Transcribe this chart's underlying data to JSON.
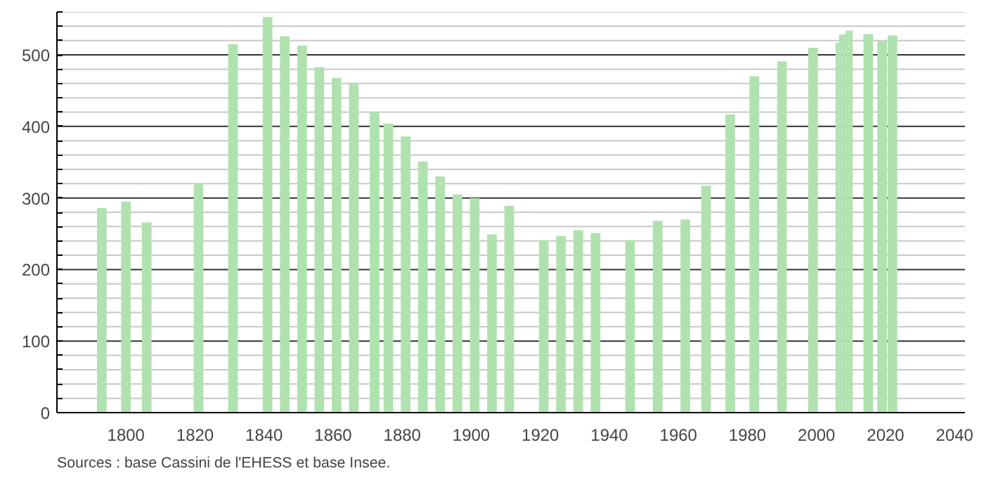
{
  "chart_data": {
    "type": "bar",
    "x": [
      1793,
      1800,
      1806,
      1821,
      1831,
      1841,
      1846,
      1851,
      1856,
      1861,
      1866,
      1872,
      1876,
      1881,
      1886,
      1891,
      1896,
      1901,
      1906,
      1911,
      1921,
      1926,
      1931,
      1936,
      1946,
      1954,
      1962,
      1968,
      1975,
      1982,
      1990,
      1999,
      2006,
      2007,
      2008,
      2009,
      2010,
      2015,
      2019,
      2022
    ],
    "values": [
      286,
      295,
      266,
      320,
      515,
      553,
      526,
      513,
      483,
      468,
      461,
      420,
      404,
      386,
      351,
      330,
      305,
      300,
      249,
      289,
      241,
      247,
      255,
      251,
      241,
      268,
      270,
      317,
      417,
      470,
      491,
      510,
      517,
      528,
      529,
      534,
      534,
      529,
      519,
      527
    ],
    "color": "#b0e2b0",
    "xlim": [
      1780,
      2043
    ],
    "ylim": [
      0,
      560
    ],
    "xticks": [
      1800,
      1820,
      1840,
      1860,
      1880,
      1900,
      1920,
      1940,
      1960,
      1980,
      2000,
      2020,
      2040
    ],
    "yticks": [
      0,
      {
        "value": 20,
        "label": null
      },
      {
        "value": 40,
        "label": null
      },
      {
        "value": 60,
        "label": null
      },
      {
        "value": 80,
        "label": null
      },
      100,
      {
        "value": 120,
        "label": null
      },
      {
        "value": 140,
        "label": null
      },
      {
        "value": 160,
        "label": null
      },
      {
        "value": 180,
        "label": null
      },
      200,
      {
        "value": 220,
        "label": null
      },
      {
        "value": 240,
        "label": null
      },
      {
        "value": 260,
        "label": null
      },
      {
        "value": 280,
        "label": null
      },
      300,
      {
        "value": 320,
        "label": null
      },
      {
        "value": 340,
        "label": null
      },
      {
        "value": 360,
        "label": null
      },
      {
        "value": 380,
        "label": null
      },
      400,
      {
        "value": 420,
        "label": null
      },
      {
        "value": 440,
        "label": null
      },
      {
        "value": 460,
        "label": null
      },
      {
        "value": 480,
        "label": null
      },
      500,
      {
        "value": 520,
        "label": null
      },
      {
        "value": 540,
        "label": null
      },
      {
        "value": 560,
        "label": null
      }
    ],
    "grid": "y",
    "annotations": [
      "Sources : base Cassini de l'EHESS et base Insee."
    ]
  }
}
